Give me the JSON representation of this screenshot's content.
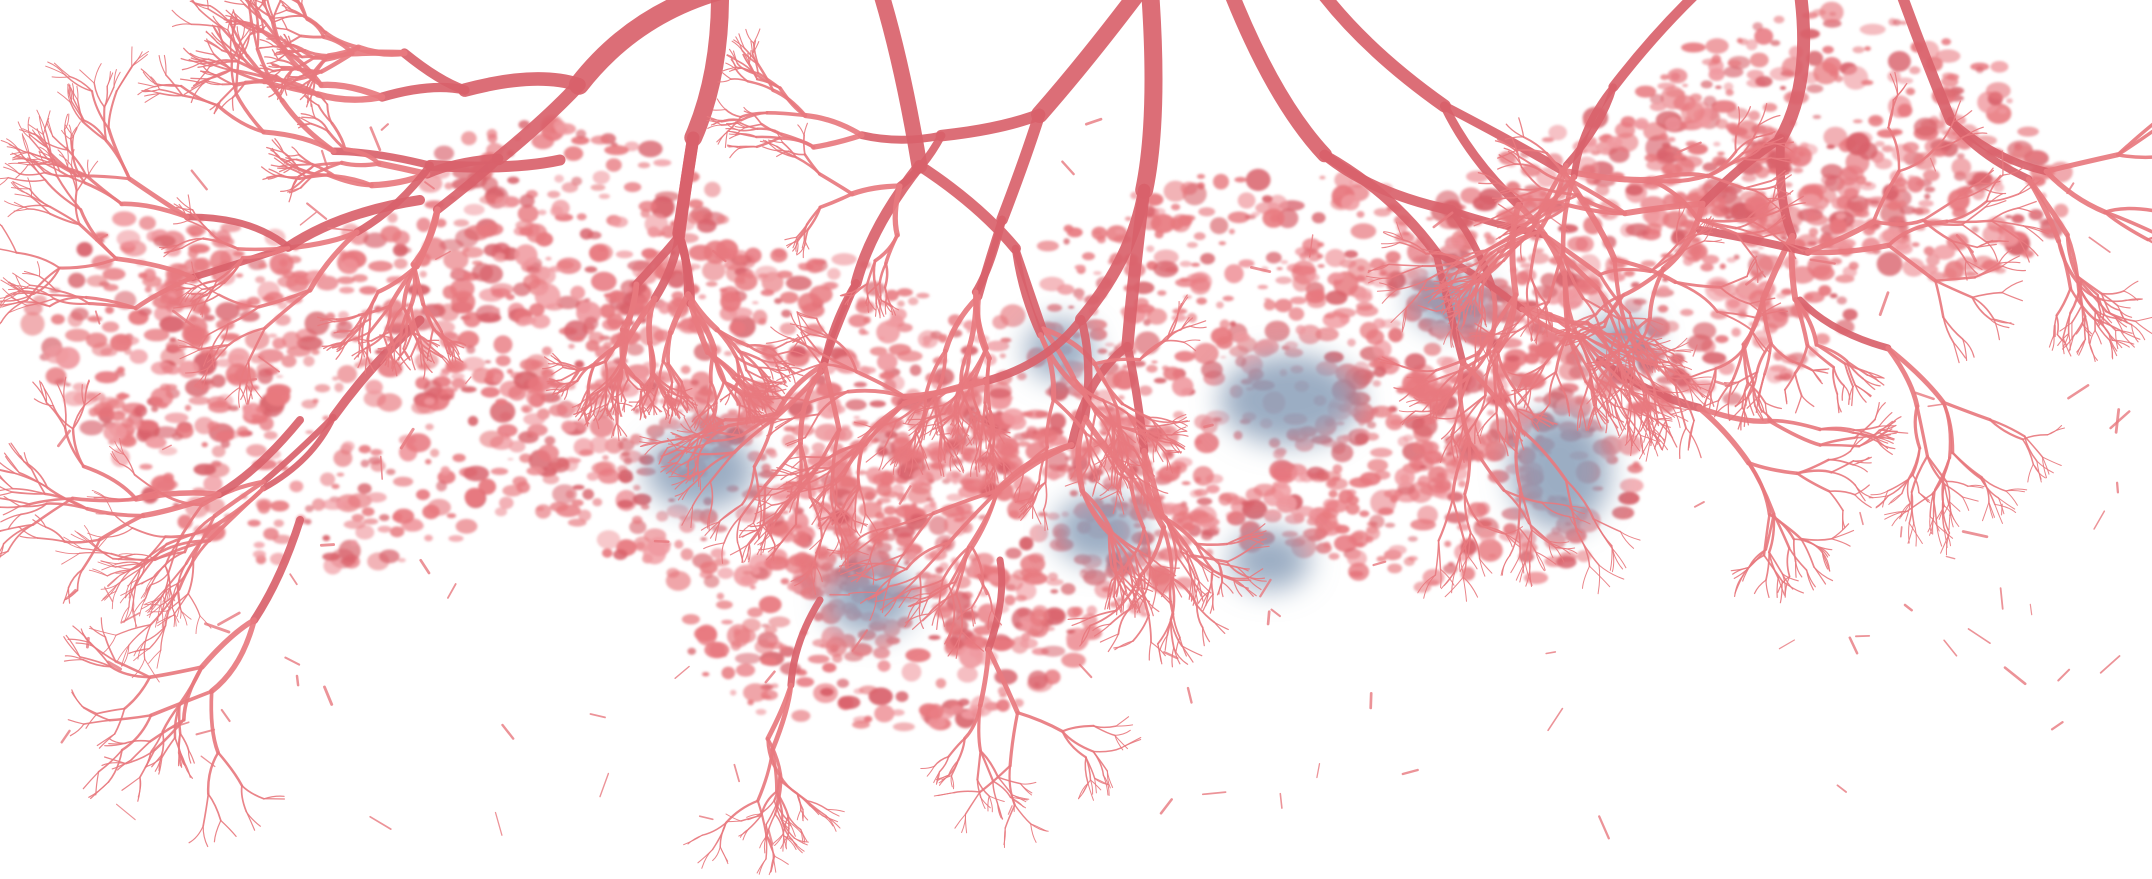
{
  "image": {
    "subject": "tree-canopy",
    "colors": {
      "background": "#ffffff",
      "branch": "#e8797f",
      "branch_dark": "#d9626b",
      "canopy_light": "#f09aa0",
      "shadow": "#8a9fb8",
      "shadow_dark": "#6f88a6"
    }
  }
}
